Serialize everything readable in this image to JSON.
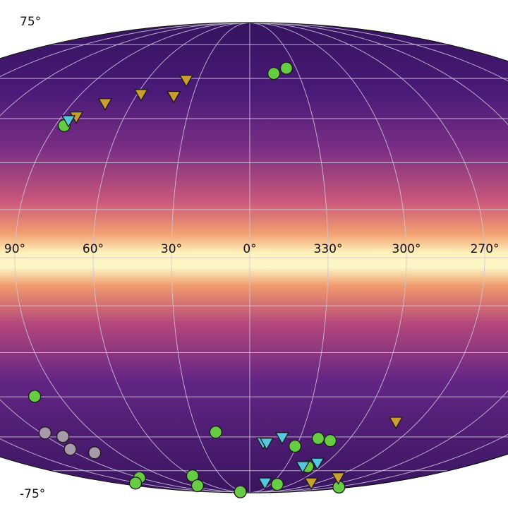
{
  "chart_data": {
    "type": "scatter",
    "projection": "mollweide",
    "coordinate_system": "galactic",
    "grid": true,
    "lon_tick_labels": [
      "90°",
      "60°",
      "30°",
      "0°",
      "330°",
      "300°",
      "270°"
    ],
    "lon_ticks": [
      90,
      60,
      30,
      0,
      330,
      300,
      270
    ],
    "lat_tick_labels": [
      "75°",
      "-75°"
    ],
    "lat_ticks": [
      75,
      -75
    ],
    "background": "sky intensity map, magma colormap, bright along galactic plane",
    "colors": {
      "green": "#66cc44",
      "gold": "#c9a030",
      "cyan": "#55c8dd",
      "gray": "#a89aab",
      "edge": "#1a1a1a",
      "grid": "#cfc6dc"
    },
    "series": [
      {
        "marker": "circle",
        "color": "green",
        "points": [
          [
            345.2,
            62.0
          ],
          [
            336.3,
            64.2
          ],
          [
            85.9,
            42.5
          ],
          [
            102.0,
            -44.8
          ],
          [
            19.4,
            -58.1
          ],
          [
            331.0,
            -63.8
          ],
          [
            319.0,
            -60.6
          ],
          [
            310.9,
            -61.5
          ],
          [
            311.6,
            -73.0
          ],
          [
            320.3,
            -82.7
          ],
          [
            205.0,
            -84.5
          ],
          [
            120.5,
            -78.8
          ],
          [
            154.1,
            -81.9
          ],
          [
            58.8,
            -77.7
          ],
          [
            82.2,
            -83.6
          ],
          [
            38.8,
            -88.5
          ]
        ]
      },
      {
        "marker": "triangle-down",
        "color": "gold",
        "points": [
          [
            37.0,
            59.2
          ],
          [
            40.0,
            53.0
          ],
          [
            57.8,
            53.7
          ],
          [
            73.3,
            50.3
          ],
          [
            82.9,
            45.5
          ],
          [
            281.6,
            -54.3
          ],
          [
            277.1,
            -81.9
          ],
          [
            263.4,
            -78.8
          ]
        ]
      },
      {
        "marker": "triangle-down",
        "color": "cyan",
        "points": [
          [
            85.4,
            44.2
          ],
          [
            351.7,
            -62.4
          ],
          [
            349.5,
            -62.6
          ],
          [
            340.7,
            -60.3
          ],
          [
            315.7,
            -73.0
          ],
          [
            306.6,
            -71.4
          ],
          [
            339.5,
            -81.9
          ]
        ]
      },
      {
        "marker": "circle",
        "color": "gray",
        "points": [
          [
            117.6,
            -58.4
          ],
          [
            110.2,
            -59.8
          ],
          [
            118.6,
            -65.1
          ],
          [
            106.4,
            -66.6
          ]
        ]
      }
    ]
  }
}
